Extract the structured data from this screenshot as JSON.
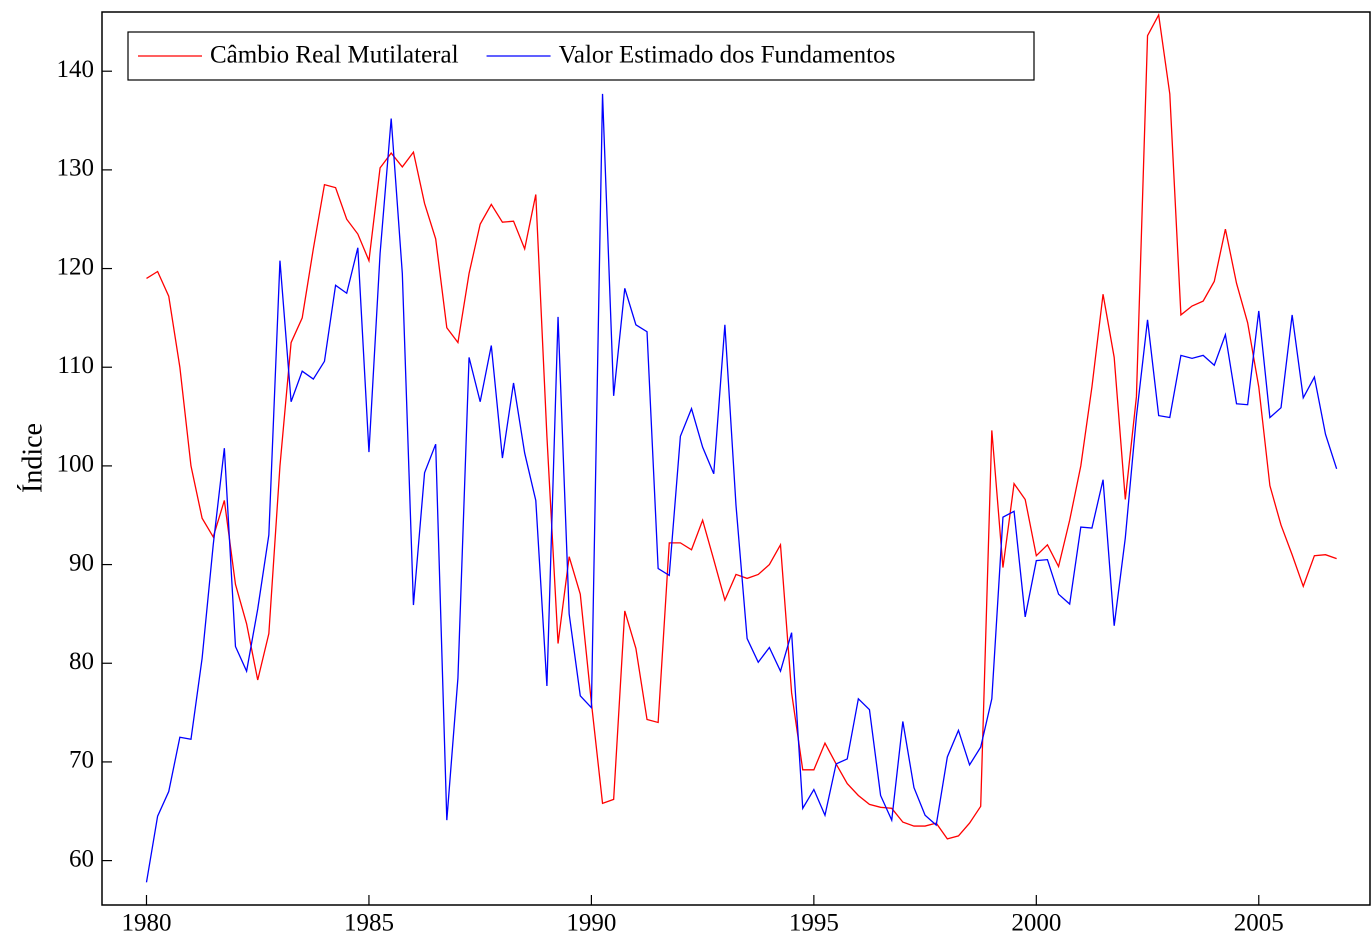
{
  "chart_data": {
    "type": "line",
    "ylabel": "Índice",
    "legend": "upper left",
    "grid": false,
    "xlim": [
      1979,
      2007.5
    ],
    "ylim": [
      55.5,
      146
    ],
    "xticks": [
      1980,
      1985,
      1990,
      1995,
      2000,
      2005
    ],
    "yticks": [
      60,
      70,
      80,
      90,
      100,
      110,
      120,
      130,
      140
    ],
    "x": [
      1980,
      1980.25,
      1980.5,
      1980.75,
      1981,
      1981.25,
      1981.5,
      1981.75,
      1982,
      1982.25,
      1982.5,
      1982.75,
      1983,
      1983.25,
      1983.5,
      1983.75,
      1984,
      1984.25,
      1984.5,
      1984.75,
      1985,
      1985.25,
      1985.5,
      1985.75,
      1986,
      1986.25,
      1986.5,
      1986.75,
      1987,
      1987.25,
      1987.5,
      1987.75,
      1988,
      1988.25,
      1988.5,
      1988.75,
      1989,
      1989.25,
      1989.5,
      1989.75,
      1990,
      1990.25,
      1990.5,
      1990.75,
      1991,
      1991.25,
      1991.5,
      1991.75,
      1992,
      1992.25,
      1992.5,
      1992.75,
      1993,
      1993.25,
      1993.5,
      1993.75,
      1994,
      1994.25,
      1994.5,
      1994.75,
      1995,
      1995.25,
      1995.5,
      1995.75,
      1996,
      1996.25,
      1996.5,
      1996.75,
      1997,
      1997.25,
      1997.5,
      1997.75,
      1998,
      1998.25,
      1998.5,
      1998.75,
      1999,
      1999.25,
      1999.5,
      1999.75,
      2000,
      2000.25,
      2000.5,
      2000.75,
      2001,
      2001.25,
      2001.5,
      2001.75,
      2002,
      2002.25,
      2002.5,
      2002.75,
      2003,
      2003.25,
      2003.5,
      2003.75,
      2004,
      2004.25,
      2004.5,
      2004.75,
      2005,
      2005.25,
      2005.5,
      2005.75,
      2006,
      2006.25,
      2006.5,
      2006.75
    ],
    "series": [
      {
        "name": "Câmbio Real Mutilateral",
        "color": "#ff0000",
        "values": [
          119,
          119.7,
          117.2,
          110,
          100,
          94.7,
          92.8,
          96.5,
          88,
          84,
          78.3,
          83,
          100,
          112.5,
          115,
          122,
          128.5,
          128.2,
          125,
          123.5,
          120.8,
          130.2,
          131.7,
          130.3,
          131.8,
          126.6,
          123,
          114,
          112.5,
          119.5,
          124.5,
          126.5,
          124.7,
          124.8,
          122,
          127.5,
          103,
          82,
          90.8,
          87,
          76,
          65.8,
          66.2,
          85.3,
          81.5,
          74.3,
          74,
          92.2,
          92.2,
          91.5,
          94.5,
          90.5,
          86.4,
          89,
          88.6,
          89,
          90,
          92,
          77,
          69.2,
          69.2,
          71.9,
          69.8,
          67.8,
          66.6,
          65.7,
          65.4,
          65.3,
          63.9,
          63.5,
          63.5,
          63.8,
          62.2,
          62.5,
          63.8,
          65.5,
          103.6,
          89.7,
          98.2,
          96.6,
          90.9,
          92,
          89.8,
          94.5,
          100,
          108,
          117.4,
          111,
          96.6,
          107,
          143.6,
          145.7,
          137.7,
          115.3,
          116.2,
          116.7,
          118.7,
          124,
          118.5,
          114.5,
          108,
          98,
          94,
          91,
          87.8,
          90.9,
          91,
          90.6
        ]
      },
      {
        "name": "Valor Estimado dos Fundamentos",
        "color": "#0000ff",
        "values": [
          57.8,
          64.5,
          67,
          72.5,
          72.3,
          80.5,
          92,
          101.8,
          81.7,
          79.2,
          85.5,
          93,
          120.8,
          106.5,
          109.6,
          108.8,
          110.6,
          118.3,
          117.5,
          122.1,
          101.4,
          121.5,
          135.2,
          119.5,
          85.9,
          99.3,
          102.2,
          64.1,
          78.5,
          111,
          106.5,
          112.2,
          100.8,
          108.4,
          101.3,
          96.5,
          77.7,
          115.1,
          85,
          76.7,
          75.5,
          137.7,
          107.1,
          118,
          114.3,
          113.6,
          89.6,
          88.9,
          103,
          105.8,
          101.9,
          99.2,
          114.3,
          96,
          82.5,
          80.1,
          81.6,
          79.2,
          83.1,
          65.3,
          67.2,
          64.6,
          69.8,
          70.3,
          76.4,
          75.3,
          66.6,
          64.1,
          74.1,
          67.4,
          64.6,
          63.6,
          70.5,
          73.2,
          69.7,
          71.5,
          76.4,
          94.8,
          95.4,
          84.7,
          90.4,
          90.5,
          87,
          86,
          93.8,
          93.7,
          98.6,
          83.8,
          92.7,
          105,
          114.8,
          105.1,
          104.9,
          111.2,
          110.9,
          111.2,
          110.2,
          113.3,
          106.3,
          106.2,
          115.7,
          104.9,
          105.9,
          115.3,
          106.9,
          109,
          103.2,
          99.7
        ]
      }
    ]
  }
}
